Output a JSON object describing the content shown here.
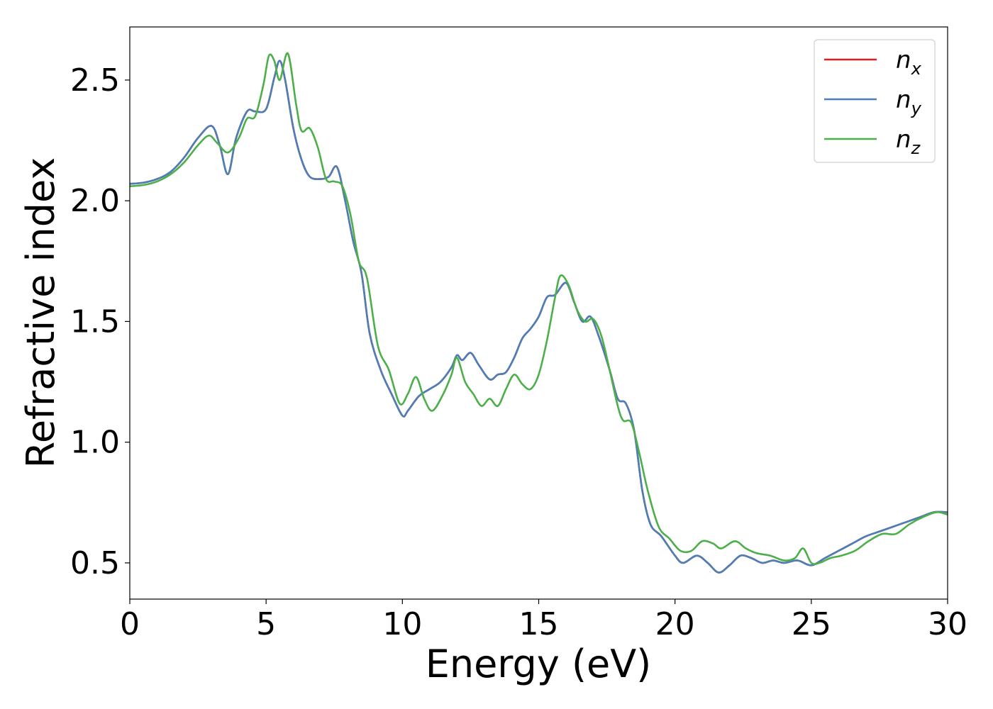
{
  "chart_data": {
    "type": "line",
    "title": "",
    "xlabel": "Energy (eV)",
    "ylabel": "Refractive index",
    "xlim": [
      0,
      30
    ],
    "ylim": [
      0.35,
      2.72
    ],
    "xticks": [
      0,
      5,
      10,
      15,
      20,
      25,
      30
    ],
    "xtick_labels": [
      "0",
      "5",
      "10",
      "15",
      "20",
      "25",
      "30"
    ],
    "yticks": [
      0.5,
      1.0,
      1.5,
      2.0,
      2.5
    ],
    "ytick_labels": [
      "0.5",
      "1.0",
      "1.5",
      "2.0",
      "2.5"
    ],
    "grid": false,
    "legend_position": "top-right",
    "series": [
      {
        "name": "n",
        "subscript": "x",
        "color": "#e41a1c",
        "x": [
          0,
          0.5,
          1,
          1.5,
          2,
          2.5,
          3,
          3.3,
          3.6,
          3.9,
          4.3,
          4.6,
          5,
          5.3,
          5.5,
          5.7,
          6,
          6.3,
          6.6,
          7,
          7.3,
          7.6,
          7.9,
          8.2,
          8.5,
          8.8,
          9.2,
          9.6,
          10,
          10.2,
          10.6,
          11,
          11.4,
          11.8,
          12,
          12.2,
          12.5,
          12.8,
          13.2,
          13.5,
          13.8,
          14.1,
          14.4,
          14.7,
          15,
          15.3,
          15.6,
          16,
          16.3,
          16.6,
          16.9,
          17.2,
          17.6,
          17.9,
          18.2,
          18.5,
          18.8,
          19.1,
          19.5,
          20,
          20.3,
          20.8,
          21.2,
          21.6,
          22,
          22.4,
          22.8,
          23.2,
          23.6,
          24,
          24.5,
          25,
          25.5,
          26,
          26.5,
          27,
          27.5,
          28,
          28.5,
          29,
          29.5,
          30
        ],
        "y": [
          2.07,
          2.075,
          2.09,
          2.12,
          2.18,
          2.26,
          2.31,
          2.23,
          2.11,
          2.26,
          2.37,
          2.37,
          2.38,
          2.51,
          2.58,
          2.5,
          2.3,
          2.17,
          2.1,
          2.09,
          2.1,
          2.14,
          2.0,
          1.83,
          1.7,
          1.45,
          1.3,
          1.2,
          1.11,
          1.13,
          1.19,
          1.22,
          1.25,
          1.31,
          1.36,
          1.34,
          1.37,
          1.32,
          1.26,
          1.28,
          1.29,
          1.35,
          1.43,
          1.47,
          1.52,
          1.6,
          1.61,
          1.66,
          1.58,
          1.5,
          1.52,
          1.44,
          1.3,
          1.18,
          1.16,
          1.05,
          0.8,
          0.66,
          0.61,
          0.53,
          0.5,
          0.53,
          0.5,
          0.46,
          0.49,
          0.53,
          0.52,
          0.5,
          0.51,
          0.5,
          0.51,
          0.49,
          0.52,
          0.55,
          0.58,
          0.61,
          0.63,
          0.65,
          0.67,
          0.69,
          0.71,
          0.71
        ]
      },
      {
        "name": "n",
        "subscript": "y",
        "color": "#4a7fb8",
        "x": [
          0,
          0.5,
          1,
          1.5,
          2,
          2.5,
          3,
          3.3,
          3.6,
          3.9,
          4.3,
          4.6,
          5,
          5.3,
          5.5,
          5.7,
          6,
          6.3,
          6.6,
          7,
          7.3,
          7.6,
          7.9,
          8.2,
          8.5,
          8.8,
          9.2,
          9.6,
          10,
          10.2,
          10.6,
          11,
          11.4,
          11.8,
          12,
          12.2,
          12.5,
          12.8,
          13.2,
          13.5,
          13.8,
          14.1,
          14.4,
          14.7,
          15,
          15.3,
          15.6,
          16,
          16.3,
          16.6,
          16.9,
          17.2,
          17.6,
          17.9,
          18.2,
          18.5,
          18.8,
          19.1,
          19.5,
          20,
          20.3,
          20.8,
          21.2,
          21.6,
          22,
          22.4,
          22.8,
          23.2,
          23.6,
          24,
          24.5,
          25,
          25.5,
          26,
          26.5,
          27,
          27.5,
          28,
          28.5,
          29,
          29.5,
          30
        ],
        "y": [
          2.07,
          2.075,
          2.09,
          2.12,
          2.18,
          2.26,
          2.31,
          2.23,
          2.11,
          2.26,
          2.37,
          2.37,
          2.38,
          2.51,
          2.58,
          2.5,
          2.3,
          2.17,
          2.1,
          2.09,
          2.1,
          2.14,
          2.0,
          1.83,
          1.7,
          1.45,
          1.3,
          1.2,
          1.11,
          1.13,
          1.19,
          1.22,
          1.25,
          1.31,
          1.36,
          1.34,
          1.37,
          1.32,
          1.26,
          1.28,
          1.29,
          1.35,
          1.43,
          1.47,
          1.52,
          1.6,
          1.61,
          1.66,
          1.58,
          1.5,
          1.52,
          1.44,
          1.3,
          1.18,
          1.16,
          1.05,
          0.8,
          0.66,
          0.61,
          0.53,
          0.5,
          0.53,
          0.5,
          0.46,
          0.49,
          0.53,
          0.52,
          0.5,
          0.51,
          0.5,
          0.51,
          0.49,
          0.52,
          0.55,
          0.58,
          0.61,
          0.63,
          0.65,
          0.67,
          0.69,
          0.71,
          0.71
        ]
      },
      {
        "name": "n",
        "subscript": "z",
        "color": "#4daf4a",
        "x": [
          0,
          0.5,
          1,
          1.5,
          2,
          2.5,
          2.9,
          3.2,
          3.6,
          4,
          4.3,
          4.6,
          4.9,
          5.1,
          5.3,
          5.5,
          5.8,
          6.1,
          6.3,
          6.6,
          6.9,
          7.2,
          7.5,
          7.8,
          8.1,
          8.4,
          8.7,
          9.1,
          9.5,
          9.9,
          10.2,
          10.5,
          10.8,
          11.1,
          11.5,
          11.8,
          12,
          12.3,
          12.6,
          12.9,
          13.2,
          13.5,
          13.8,
          14.1,
          14.4,
          14.7,
          15,
          15.3,
          15.6,
          15.8,
          16.1,
          16.4,
          16.7,
          17,
          17.3,
          17.6,
          17.9,
          18.1,
          18.4,
          18.7,
          19,
          19.4,
          19.8,
          20.2,
          20.6,
          21,
          21.4,
          21.7,
          22.2,
          22.6,
          23,
          23.5,
          24,
          24.4,
          24.7,
          25,
          25.3,
          25.7,
          26.1,
          26.6,
          27.1,
          27.6,
          28.1,
          28.6,
          29.1,
          29.6,
          30
        ],
        "y": [
          2.06,
          2.065,
          2.08,
          2.11,
          2.16,
          2.23,
          2.27,
          2.24,
          2.2,
          2.26,
          2.34,
          2.35,
          2.48,
          2.6,
          2.58,
          2.5,
          2.61,
          2.4,
          2.29,
          2.3,
          2.22,
          2.09,
          2.08,
          2.06,
          1.94,
          1.75,
          1.68,
          1.4,
          1.3,
          1.16,
          1.2,
          1.27,
          1.18,
          1.13,
          1.2,
          1.28,
          1.35,
          1.25,
          1.2,
          1.15,
          1.18,
          1.15,
          1.22,
          1.28,
          1.24,
          1.22,
          1.28,
          1.42,
          1.6,
          1.69,
          1.65,
          1.55,
          1.5,
          1.51,
          1.44,
          1.3,
          1.15,
          1.09,
          1.08,
          0.95,
          0.8,
          0.65,
          0.6,
          0.55,
          0.55,
          0.59,
          0.58,
          0.56,
          0.59,
          0.56,
          0.54,
          0.53,
          0.51,
          0.52,
          0.56,
          0.5,
          0.5,
          0.52,
          0.53,
          0.55,
          0.59,
          0.62,
          0.62,
          0.66,
          0.69,
          0.71,
          0.7
        ]
      }
    ]
  }
}
